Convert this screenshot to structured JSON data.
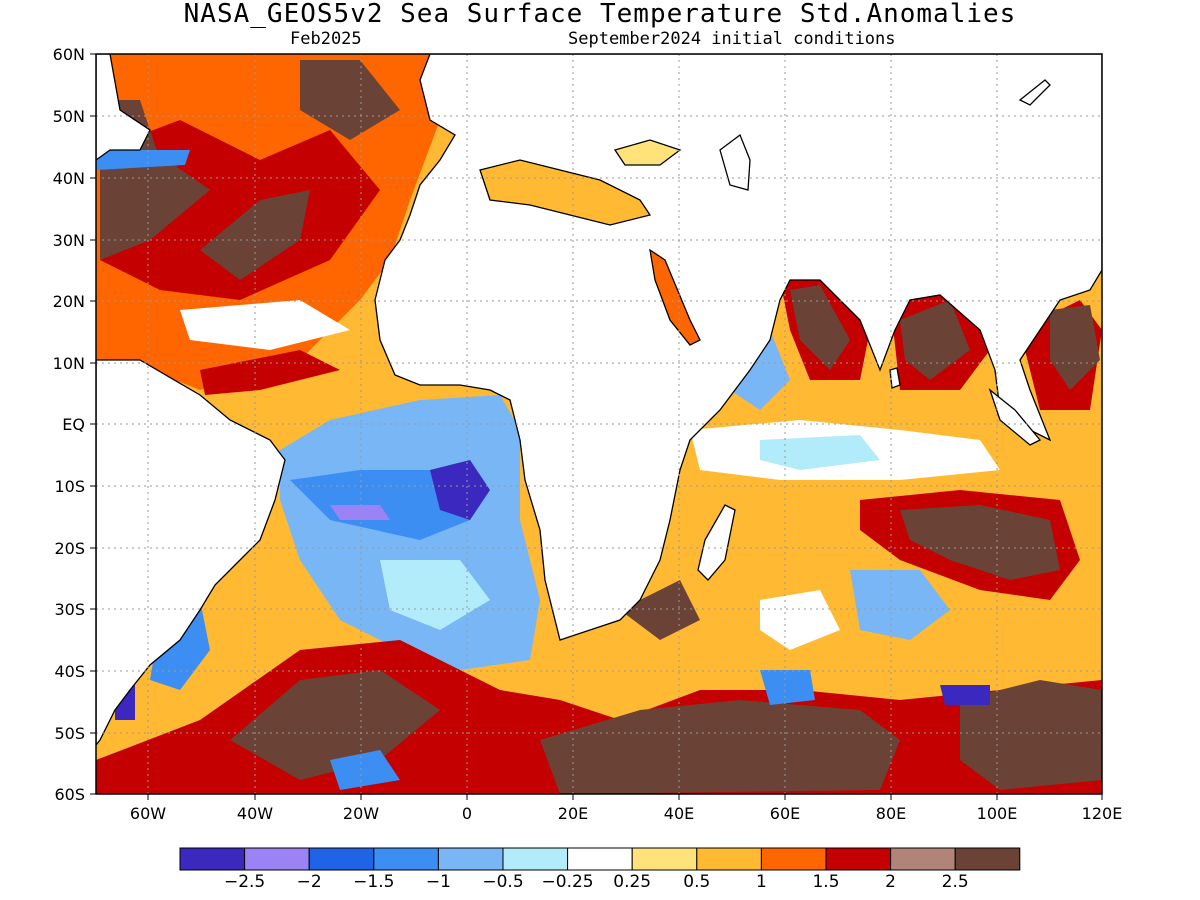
{
  "title": "NASA_GEOS5v2 Sea Surface Temperature Std.Anomalies",
  "subtitle_left": "Feb2025",
  "subtitle_right": "September2024 initial conditions",
  "lat_labels": [
    "60N",
    "50N",
    "40N",
    "30N",
    "20N",
    "10N",
    "EQ",
    "10S",
    "20S",
    "30S",
    "40S",
    "50S",
    "60S"
  ],
  "lon_labels": [
    "60W",
    "40W",
    "20W",
    "0",
    "20E",
    "40E",
    "60E",
    "80E",
    "100E",
    "120E"
  ],
  "colorbar": {
    "colors": [
      "#3b28bf",
      "#9b82f5",
      "#1f64e6",
      "#3d8ef2",
      "#78b6f5",
      "#b2ecfa",
      "#ffffff",
      "#ffe37a",
      "#ffb933",
      "#ff6600",
      "#c40000",
      "#b08478",
      "#6b4336"
    ],
    "labels": [
      "−2.5",
      "−2",
      "−1.5",
      "−1",
      "−0.5",
      "−0.25",
      "0.25",
      "0.5",
      "1",
      "1.5",
      "2",
      "2.5"
    ]
  },
  "map_colors": {
    "ocean_warm": "#ffb933",
    "ocean_very_warm": "#c40000",
    "ocean_extreme": "#6b4336",
    "ocean_cool": "#78b6f5",
    "ocean_cold": "#3d8ef2",
    "land": "#ffffff",
    "coast": "#000000",
    "grid": "#9a9a9a"
  }
}
